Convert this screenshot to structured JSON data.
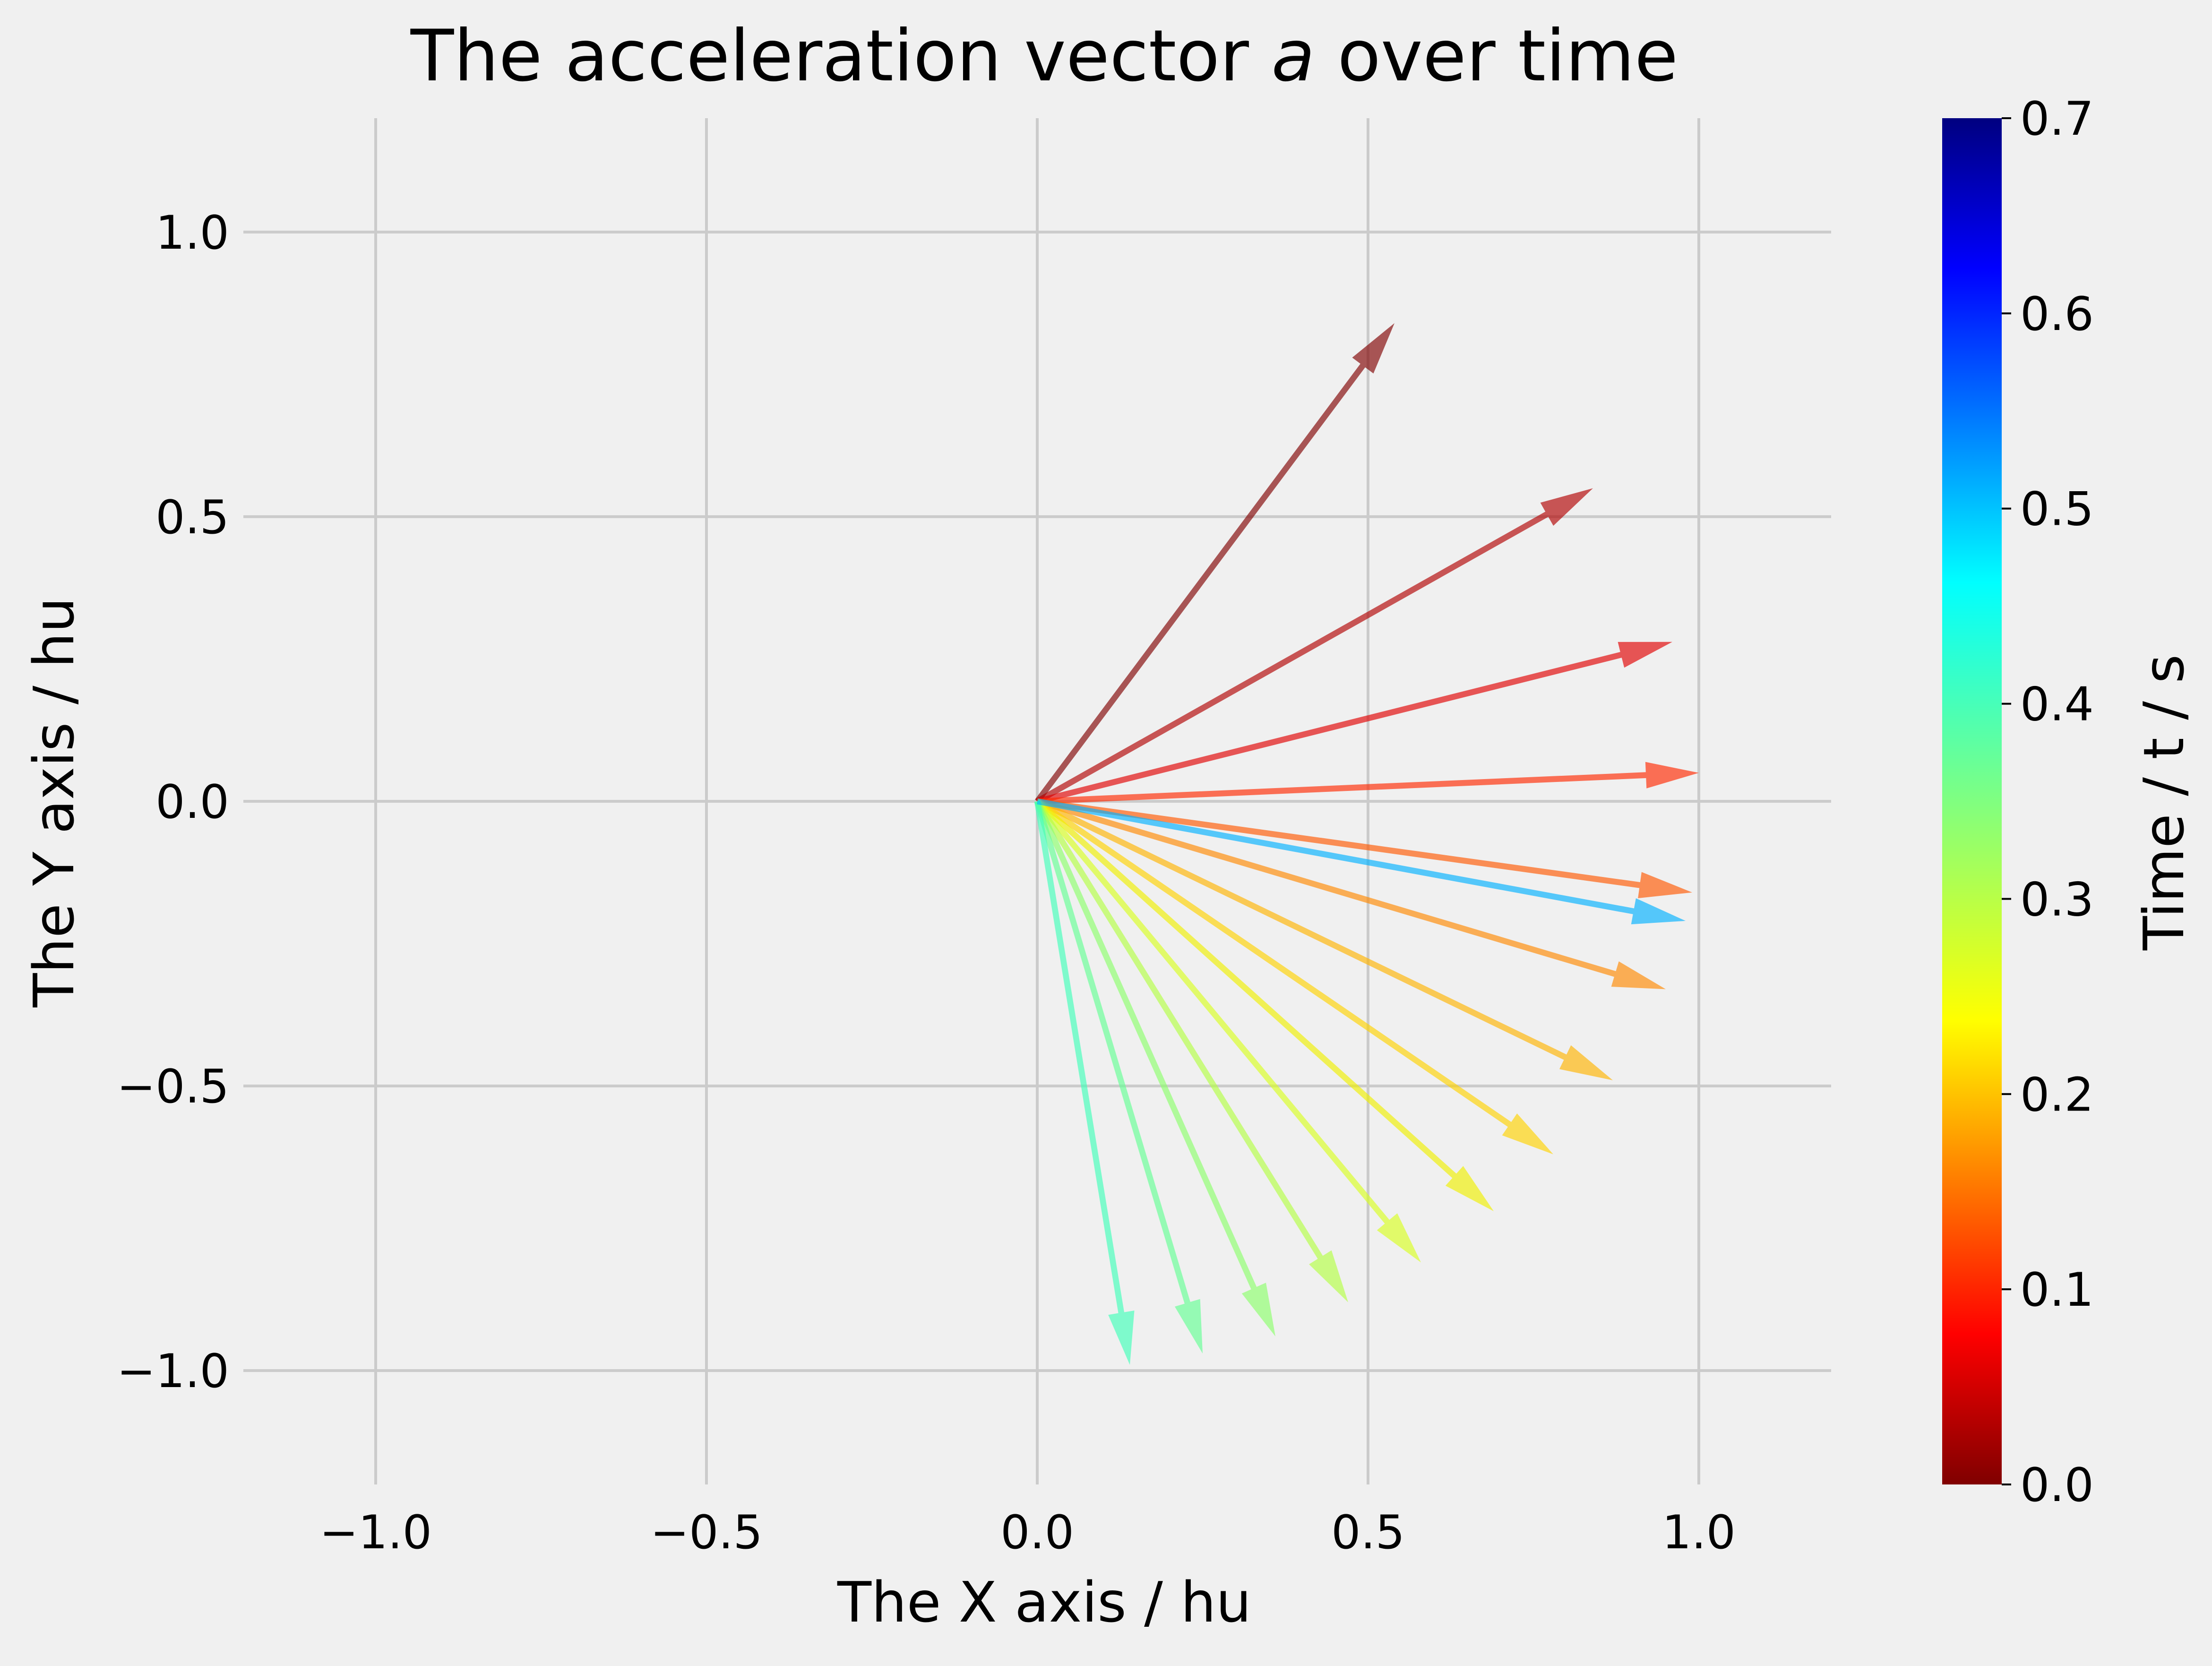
{
  "chart_data": {
    "type": "quiver",
    "title_prefix": "The acceleration vector ",
    "title_symbol": "a",
    "title_suffix": " over time",
    "xlabel": "The X axis / hu",
    "ylabel": "The Y axis / hu",
    "xlim": [
      -1.2,
      1.2
    ],
    "ylim": [
      -1.2,
      1.2
    ],
    "xticks": [
      {
        "value": -1.0,
        "label": "−1.0"
      },
      {
        "value": -0.5,
        "label": "−0.5"
      },
      {
        "value": 0.0,
        "label": "0.0"
      },
      {
        "value": 0.5,
        "label": "0.5"
      },
      {
        "value": 1.0,
        "label": "1.0"
      }
    ],
    "yticks": [
      {
        "value": 1.0,
        "label": "1.0"
      },
      {
        "value": 0.5,
        "label": "0.5"
      },
      {
        "value": 0.0,
        "label": "0.0"
      },
      {
        "value": -0.5,
        "label": "−0.5"
      },
      {
        "value": -1.0,
        "label": "−1.0"
      }
    ],
    "grid": true,
    "colorbar": {
      "label": "Time / t / s",
      "cmap": "jet",
      "range": [
        0.0,
        0.7
      ],
      "ticks": [
        {
          "value": 0.0,
          "label": "0.0"
        },
        {
          "value": 0.1,
          "label": "0.1"
        },
        {
          "value": 0.2,
          "label": "0.2"
        },
        {
          "value": 0.3,
          "label": "0.3"
        },
        {
          "value": 0.4,
          "label": "0.4"
        },
        {
          "value": 0.5,
          "label": "0.5"
        },
        {
          "value": 0.6,
          "label": "0.6"
        },
        {
          "value": 0.7,
          "label": "0.7"
        }
      ]
    },
    "vectors": [
      {
        "t": 0.0,
        "x0": 0,
        "y0": 0,
        "dx": 0.54,
        "dy": 0.84,
        "color": "#7f0000"
      },
      {
        "t": 0.03,
        "x0": 0,
        "y0": 0,
        "dx": 0.84,
        "dy": 0.55,
        "color": "#b00000"
      },
      {
        "t": 0.06,
        "x0": 0,
        "y0": 0,
        "dx": 0.96,
        "dy": 0.28,
        "color": "#e00000"
      },
      {
        "t": 0.09,
        "x0": 0,
        "y0": 0,
        "dx": 1.0,
        "dy": 0.05,
        "color": "#ff2800"
      },
      {
        "t": 0.12,
        "x0": 0,
        "y0": 0,
        "dx": 0.99,
        "dy": -0.16,
        "color": "#ff5800"
      },
      {
        "t": 0.15,
        "x0": 0,
        "y0": 0,
        "dx": 0.95,
        "dy": -0.33,
        "color": "#ff8800"
      },
      {
        "t": 0.18,
        "x0": 0,
        "y0": 0,
        "dx": 0.87,
        "dy": -0.49,
        "color": "#ffb400"
      },
      {
        "t": 0.21,
        "x0": 0,
        "y0": 0,
        "dx": 0.78,
        "dy": -0.62,
        "color": "#ffd200"
      },
      {
        "t": 0.24,
        "x0": 0,
        "y0": 0,
        "dx": 0.69,
        "dy": -0.72,
        "color": "#f0f000"
      },
      {
        "t": 0.27,
        "x0": 0,
        "y0": 0,
        "dx": 0.58,
        "dy": -0.81,
        "color": "#d8ff20"
      },
      {
        "t": 0.3,
        "x0": 0,
        "y0": 0,
        "dx": 0.47,
        "dy": -0.88,
        "color": "#b4ff44"
      },
      {
        "t": 0.33,
        "x0": 0,
        "y0": 0,
        "dx": 0.36,
        "dy": -0.94,
        "color": "#8cff6c"
      },
      {
        "t": 0.36,
        "x0": 0,
        "y0": 0,
        "dx": 0.25,
        "dy": -0.97,
        "color": "#64ff94"
      },
      {
        "t": 0.39,
        "x0": 0,
        "y0": 0,
        "dx": 0.14,
        "dy": -0.99,
        "color": "#40ffb8"
      },
      {
        "t": 0.5,
        "x0": 0,
        "y0": 0,
        "dx": 0.98,
        "dy": -0.21,
        "color": "#00b0ff"
      }
    ]
  }
}
